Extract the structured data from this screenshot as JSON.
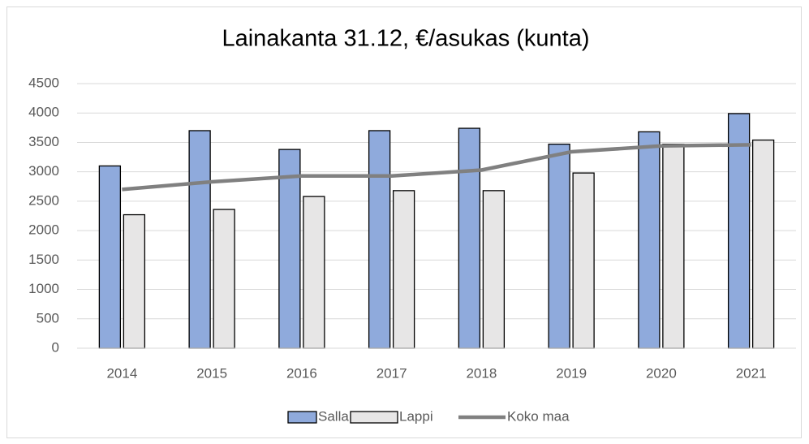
{
  "chart_data": {
    "type": "bar",
    "title": "Lainakanta 31.12, €/asukas (kunta)",
    "categories": [
      "2014",
      "2015",
      "2016",
      "2017",
      "2018",
      "2019",
      "2020",
      "2021"
    ],
    "series": [
      {
        "name": "Salla",
        "type": "bar",
        "color": "#8faadc",
        "values": [
          3100,
          3700,
          3380,
          3700,
          3740,
          3470,
          3680,
          3990
        ]
      },
      {
        "name": "Lappi",
        "type": "bar",
        "color": "#e7e6e6",
        "values": [
          2270,
          2360,
          2580,
          2680,
          2680,
          2980,
          3470,
          3540
        ]
      },
      {
        "name": "Koko maa",
        "type": "line",
        "color": "#808080",
        "values": [
          2700,
          2830,
          2930,
          2930,
          3030,
          3340,
          3440,
          3460
        ]
      }
    ],
    "ylim": [
      0,
      4500
    ],
    "yticks": [
      0,
      500,
      1000,
      1500,
      2000,
      2500,
      3000,
      3500,
      4000,
      4500
    ],
    "grid": true,
    "legend": "bottom"
  }
}
